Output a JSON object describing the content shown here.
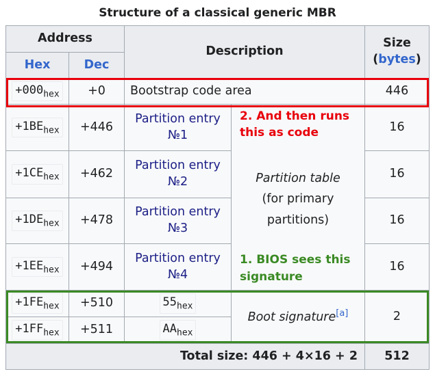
{
  "title": "Structure of a classical generic MBR",
  "header": {
    "address": "Address",
    "hex": "Hex",
    "dec": "Dec",
    "description": "Description",
    "size": "Size",
    "size_unit": {
      "open": "(",
      "link": "bytes",
      "close": ")"
    }
  },
  "rows": [
    {
      "hex": "+000",
      "hex_suffix": "hex",
      "dec": "+0",
      "description": "Bootstrap code area",
      "size": 446
    },
    {
      "hex": "+1BE",
      "hex_suffix": "hex",
      "dec": "+446",
      "description": "Partition entry №1",
      "size": 16
    },
    {
      "hex": "+1CE",
      "hex_suffix": "hex",
      "dec": "+462",
      "description": "Partition entry №2",
      "size": 16
    },
    {
      "hex": "+1DE",
      "hex_suffix": "hex",
      "dec": "+478",
      "description": "Partition entry №3",
      "size": 16
    },
    {
      "hex": "+1EE",
      "hex_suffix": "hex",
      "dec": "+494",
      "description": "Partition entry №4",
      "size": 16
    },
    {
      "hex": "+1FE",
      "hex_suffix": "hex",
      "dec": "+510",
      "description": {
        "value": "55",
        "suffix": "hex"
      }
    },
    {
      "hex": "+1FF",
      "hex_suffix": "hex",
      "dec": "+511",
      "description": {
        "value": "AA",
        "suffix": "hex"
      }
    }
  ],
  "partition_table": {
    "title": "Partition table",
    "note": "(for primary partitions)"
  },
  "boot_signature": {
    "text": "Boot signature",
    "footnote": "[a]",
    "size": 2
  },
  "footer": {
    "label": "Total size: 446 + 4×16 + 2",
    "value": 512
  },
  "annotations": [
    {
      "text": "2. And then runs this as code",
      "color": "#e8000b"
    },
    {
      "text": "1. BIOS sees this signature",
      "color": "#3a8a24"
    }
  ]
}
